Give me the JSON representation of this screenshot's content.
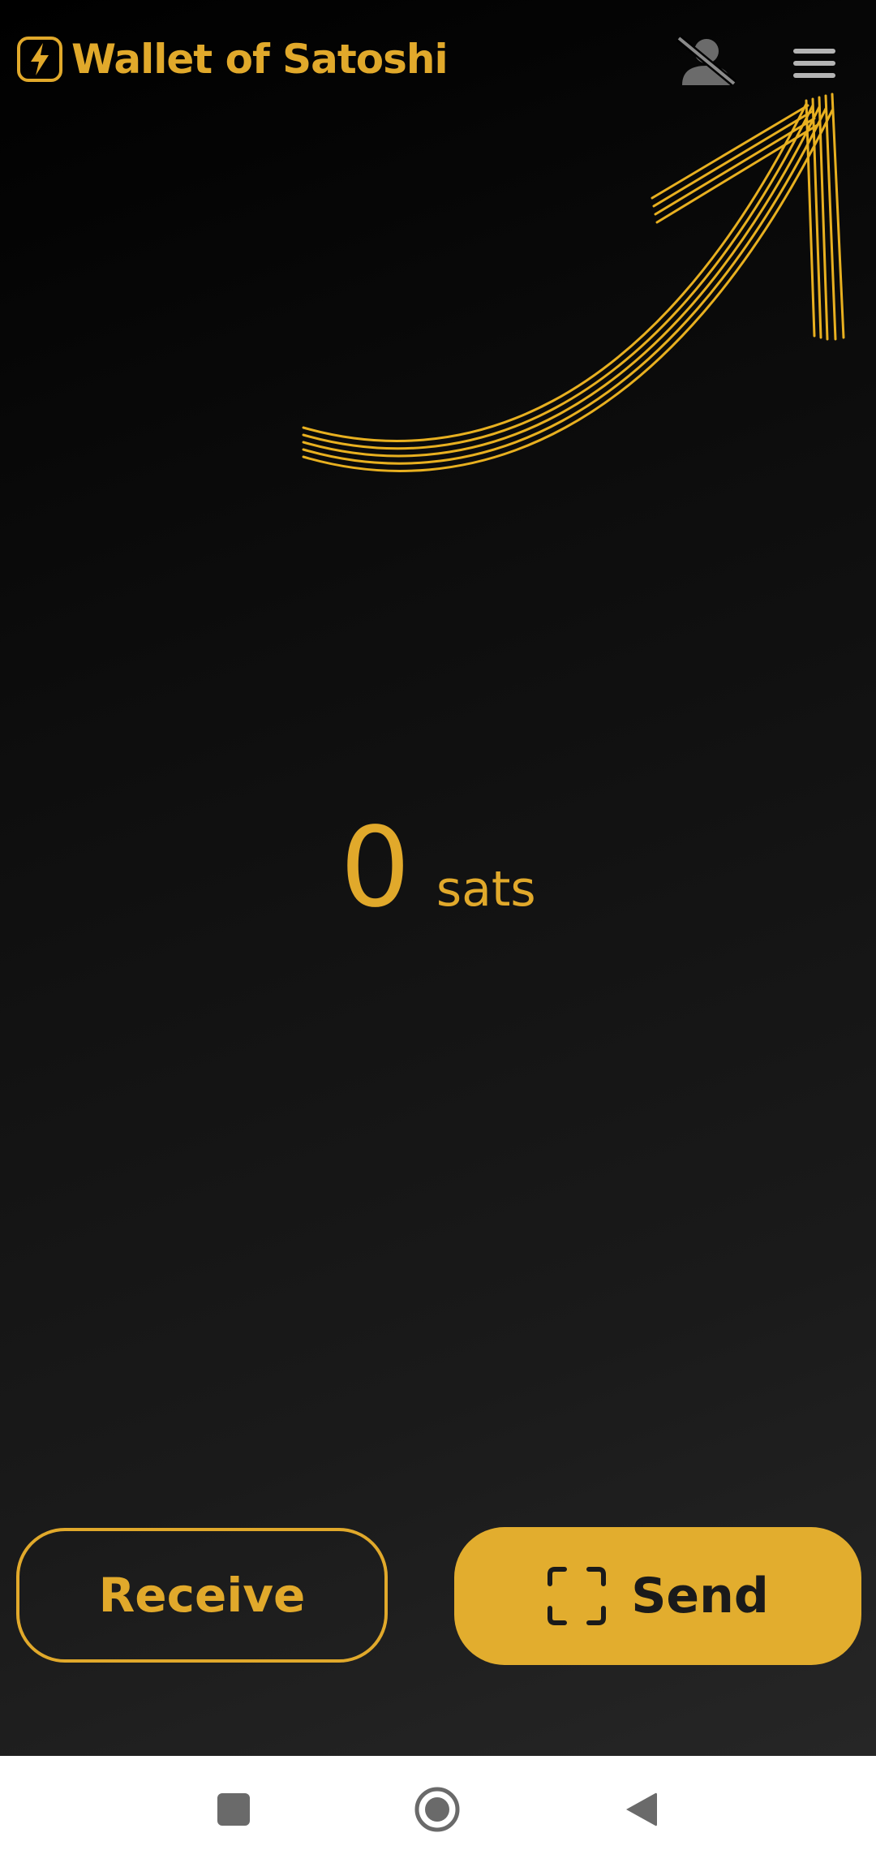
{
  "app": {
    "title": "Wallet of Satoshi",
    "accent_color": "#e1a92b",
    "send_color": "#e2ad2e"
  },
  "header": {
    "logo_icon": "lightning-bolt-icon",
    "privacy_icon": "hidden-user-icon",
    "menu_icon": "hamburger-menu-icon"
  },
  "balance": {
    "value": "0",
    "unit": "sats"
  },
  "actions": {
    "receive_label": "Receive",
    "send_label": "Send",
    "send_icon": "qr-scan-icon"
  },
  "navbar": {
    "recents_icon": "square-icon",
    "home_icon": "circle-icon",
    "back_icon": "triangle-back-icon"
  }
}
